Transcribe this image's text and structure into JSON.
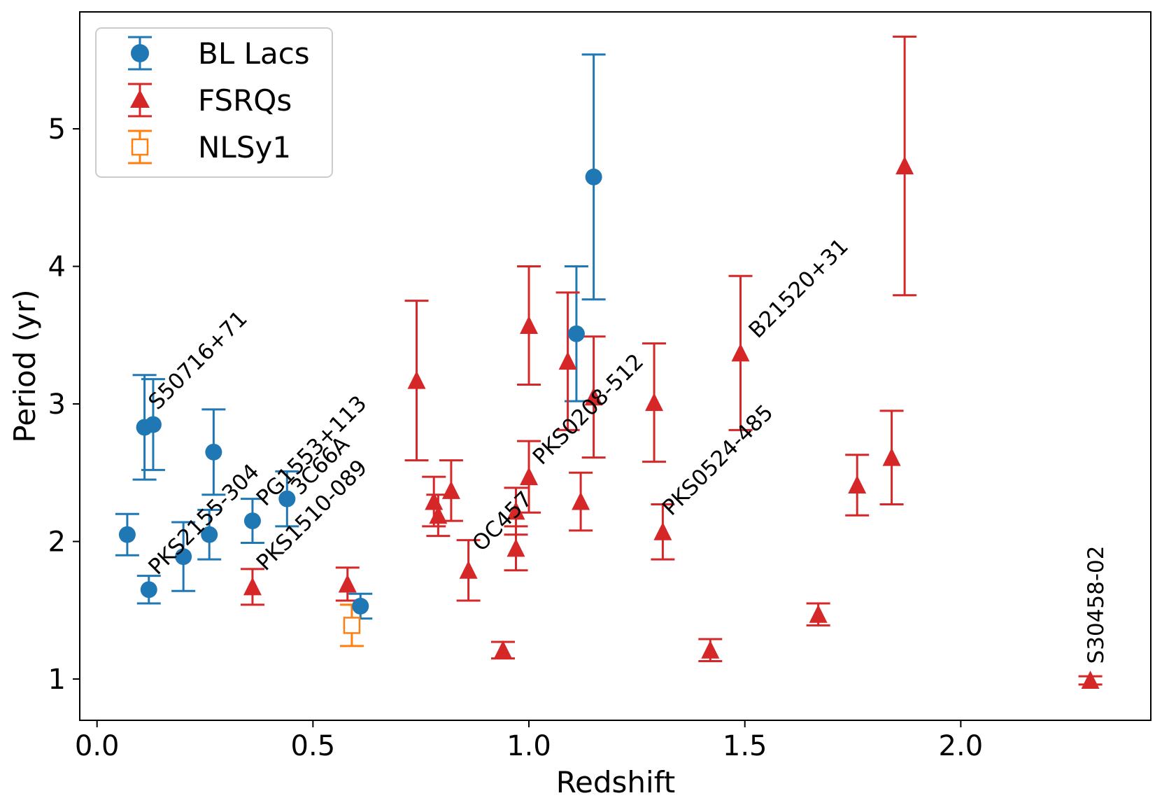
{
  "chart_data": {
    "type": "scatter",
    "xlabel": "Redshift",
    "ylabel": "Period (yr)",
    "xlim": [
      -0.04,
      2.44
    ],
    "ylim": [
      0.7,
      5.85
    ],
    "xticks": [
      0.0,
      0.5,
      1.0,
      1.5,
      2.0
    ],
    "xtick_labels": [
      "0.0",
      "0.5",
      "1.0",
      "1.5",
      "2.0"
    ],
    "yticks": [
      1,
      2,
      3,
      4,
      5
    ],
    "ytick_labels": [
      "1",
      "2",
      "3",
      "4",
      "5"
    ],
    "legend_position": "top-left",
    "colors": {
      "bllac": "#1f77b4",
      "fsrq": "#d62728",
      "nlsy1": "#ff7f0e"
    },
    "series": [
      {
        "name": "BL Lacs",
        "marker": "circle",
        "points": [
          {
            "x": 0.07,
            "y": 2.05,
            "lo": 1.9,
            "hi": 2.2
          },
          {
            "x": 0.11,
            "y": 2.83,
            "lo": 2.45,
            "hi": 3.21
          },
          {
            "x": 0.12,
            "y": 1.65,
            "lo": 1.55,
            "hi": 1.75
          },
          {
            "x": 0.13,
            "y": 2.85,
            "lo": 2.52,
            "hi": 3.18
          },
          {
            "x": 0.2,
            "y": 1.89,
            "lo": 1.64,
            "hi": 2.14
          },
          {
            "x": 0.26,
            "y": 2.05,
            "lo": 1.87,
            "hi": 2.23
          },
          {
            "x": 0.27,
            "y": 2.65,
            "lo": 2.34,
            "hi": 2.96
          },
          {
            "x": 0.36,
            "y": 2.15,
            "lo": 1.99,
            "hi": 2.31
          },
          {
            "x": 0.44,
            "y": 2.31,
            "lo": 2.11,
            "hi": 2.51
          },
          {
            "x": 0.61,
            "y": 1.53,
            "lo": 1.44,
            "hi": 1.62
          },
          {
            "x": 1.11,
            "y": 3.51,
            "lo": 3.02,
            "hi": 4.0
          },
          {
            "x": 1.15,
            "y": 4.65,
            "lo": 3.76,
            "hi": 5.54
          }
        ]
      },
      {
        "name": "FSRQs",
        "marker": "triangle",
        "points": [
          {
            "x": 0.36,
            "y": 1.67,
            "lo": 1.54,
            "hi": 1.8
          },
          {
            "x": 0.58,
            "y": 1.69,
            "lo": 1.57,
            "hi": 1.81
          },
          {
            "x": 0.74,
            "y": 3.17,
            "lo": 2.59,
            "hi": 3.75
          },
          {
            "x": 0.78,
            "y": 2.29,
            "lo": 2.11,
            "hi": 2.47
          },
          {
            "x": 0.79,
            "y": 2.19,
            "lo": 2.04,
            "hi": 2.34
          },
          {
            "x": 0.82,
            "y": 2.37,
            "lo": 2.15,
            "hi": 2.59
          },
          {
            "x": 0.86,
            "y": 1.79,
            "lo": 1.57,
            "hi": 2.01
          },
          {
            "x": 0.94,
            "y": 1.21,
            "lo": 1.15,
            "hi": 1.27
          },
          {
            "x": 0.97,
            "y": 1.95,
            "lo": 1.79,
            "hi": 2.11
          },
          {
            "x": 0.97,
            "y": 2.22,
            "lo": 2.05,
            "hi": 2.39
          },
          {
            "x": 1.0,
            "y": 2.47,
            "lo": 2.21,
            "hi": 2.73
          },
          {
            "x": 1.0,
            "y": 3.57,
            "lo": 3.14,
            "hi": 4.0
          },
          {
            "x": 1.09,
            "y": 3.31,
            "lo": 2.81,
            "hi": 3.81
          },
          {
            "x": 1.12,
            "y": 2.29,
            "lo": 2.08,
            "hi": 2.5
          },
          {
            "x": 1.15,
            "y": 3.05,
            "lo": 2.61,
            "hi": 3.49
          },
          {
            "x": 1.29,
            "y": 3.01,
            "lo": 2.58,
            "hi": 3.44
          },
          {
            "x": 1.31,
            "y": 2.07,
            "lo": 1.87,
            "hi": 2.27
          },
          {
            "x": 1.42,
            "y": 1.21,
            "lo": 1.13,
            "hi": 1.29
          },
          {
            "x": 1.49,
            "y": 3.37,
            "lo": 2.81,
            "hi": 3.93
          },
          {
            "x": 1.67,
            "y": 1.47,
            "lo": 1.39,
            "hi": 1.55
          },
          {
            "x": 1.76,
            "y": 2.41,
            "lo": 2.19,
            "hi": 2.63
          },
          {
            "x": 1.84,
            "y": 2.61,
            "lo": 2.27,
            "hi": 2.95
          },
          {
            "x": 1.87,
            "y": 4.73,
            "lo": 3.79,
            "hi": 5.67
          },
          {
            "x": 2.3,
            "y": 0.99,
            "lo": 0.96,
            "hi": 1.02
          }
        ]
      },
      {
        "name": "NLSy1",
        "marker": "open-square",
        "points": [
          {
            "x": 0.59,
            "y": 1.39,
            "lo": 1.24,
            "hi": 1.54
          }
        ]
      }
    ],
    "annotations": [
      {
        "text": "S50716+71",
        "x": 0.14,
        "y": 2.95
      },
      {
        "text": "PKS2155-304",
        "x": 0.14,
        "y": 1.75
      },
      {
        "text": "PG1553+113",
        "x": 0.39,
        "y": 2.25
      },
      {
        "text": "3C66A",
        "x": 0.47,
        "y": 2.33
      },
      {
        "text": "PKS1510-089",
        "x": 0.39,
        "y": 1.78
      },
      {
        "text": "OC457",
        "x": 0.89,
        "y": 1.92
      },
      {
        "text": "PKS0208-512",
        "x": 1.03,
        "y": 2.55
      },
      {
        "text": "PKS0524-485",
        "x": 1.33,
        "y": 2.18
      },
      {
        "text": "B21520+31",
        "x": 1.53,
        "y": 3.47
      },
      {
        "text": "S30458-02",
        "x": 2.33,
        "y": 1.11
      }
    ]
  }
}
